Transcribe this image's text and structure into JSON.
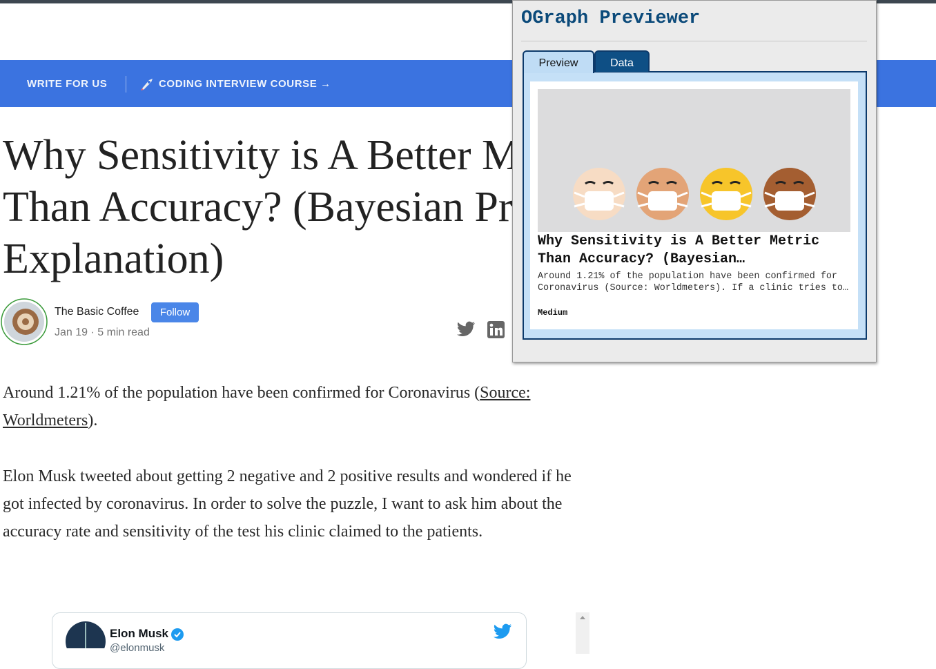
{
  "nav": {
    "items": [
      "WRITE FOR US",
      "CODING INTERVIEW COURSE →"
    ]
  },
  "article": {
    "title": "Why Sensitivity is A Better Metric Than Accuracy? (Bayesian Probability Explanation)",
    "author": {
      "name": "The Basic Coffee",
      "follow": "Follow",
      "meta": "Jan 19 · 5 min read"
    },
    "paragraphs": [
      {
        "before": "Around 1.21% of the population have been confirmed for Coronavirus (",
        "link": "Source: Worldmeters",
        "after": ")."
      },
      {
        "text": "Elon Musk tweeted about getting 2 negative and 2 positive results and wondered if he got infected by coronavirus. In order to solve the puzzle, I want to ask him about the accuracy rate and sensitivity of the test his clinic claimed to the patients."
      }
    ],
    "tweet": {
      "name": "Elon Musk",
      "handle": "@elonmusk"
    }
  },
  "extension": {
    "title": "OGraph Previewer",
    "tabs": [
      "Preview",
      "Data"
    ],
    "card": {
      "title": "Why Sensitivity is A Better Metric Than Accuracy? (Bayesian…",
      "description": "Around 1.21% of the population have been confirmed for Coronavirus (Source: Worldmeters). If a clinic tries to…",
      "site": "Medium"
    }
  }
}
